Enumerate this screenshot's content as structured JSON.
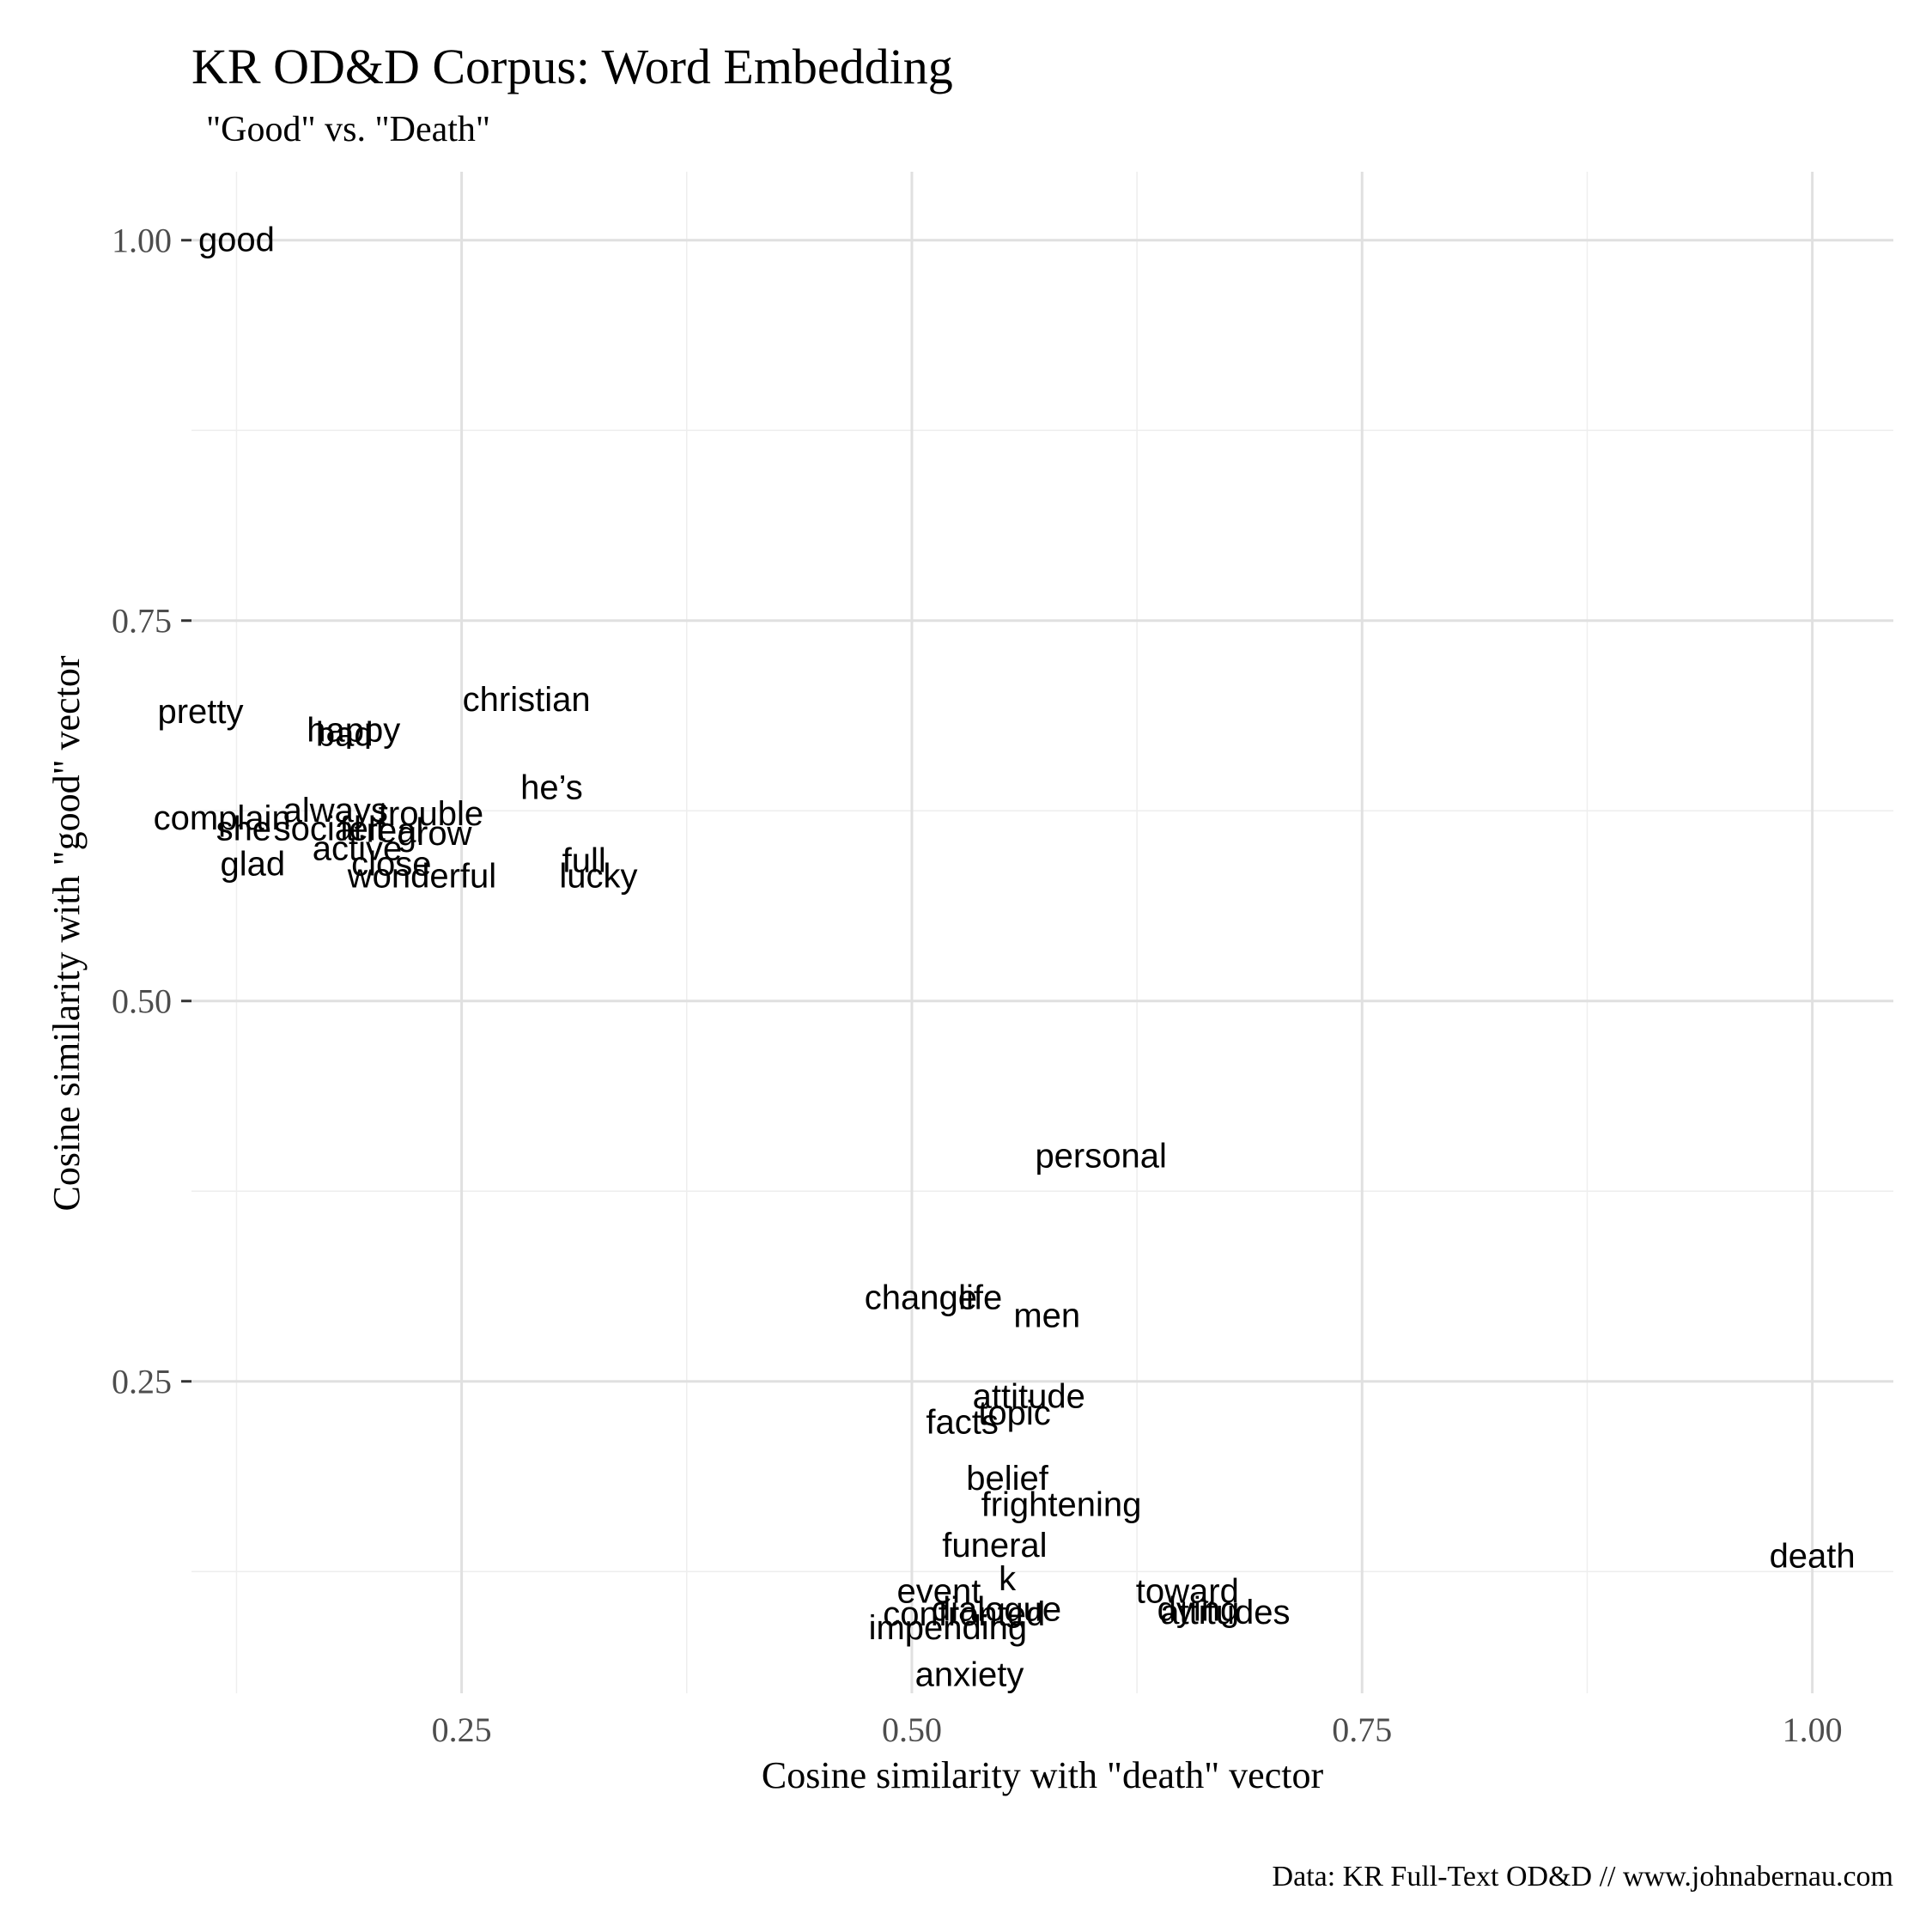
{
  "chart_data": {
    "type": "scatter",
    "title": "KR OD&D Corpus: Word Embedding",
    "subtitle": "\"Good\" vs. \"Death\"",
    "xlabel": "Cosine similarity with \"death\" vector",
    "ylabel": "Cosine similarity with \"good\" vector",
    "caption": "Data: KR Full-Text OD&D // www.johnabernau.com",
    "xlim": [
      0.1,
      1.045
    ],
    "ylim": [
      0.045,
      1.045
    ],
    "x_ticks": [
      0.25,
      0.5,
      0.75,
      1.0
    ],
    "x_tick_labels": [
      "0.25",
      "0.50",
      "0.75",
      "1.00"
    ],
    "y_ticks": [
      0.25,
      0.5,
      0.75,
      1.0
    ],
    "y_tick_labels": [
      "0.25",
      "0.50",
      "0.75",
      "1.00"
    ],
    "x_minor": [
      0.125,
      0.375,
      0.625,
      0.875
    ],
    "y_minor": [
      0.125,
      0.375,
      0.625,
      0.875
    ],
    "grid": true,
    "points": [
      {
        "label": "good",
        "x": 0.125,
        "y": 1.0
      },
      {
        "label": "pretty",
        "x": 0.105,
        "y": 0.69
      },
      {
        "label": "happy",
        "x": 0.19,
        "y": 0.678
      },
      {
        "label": "bad",
        "x": 0.185,
        "y": 0.675
      },
      {
        "label": "christian",
        "x": 0.286,
        "y": 0.698
      },
      {
        "label": "he’s",
        "x": 0.3,
        "y": 0.64
      },
      {
        "label": "complain",
        "x": 0.117,
        "y": 0.62
      },
      {
        "label": "always",
        "x": 0.18,
        "y": 0.625
      },
      {
        "label": "trouble",
        "x": 0.233,
        "y": 0.623
      },
      {
        "label": "she",
        "x": 0.129,
        "y": 0.613
      },
      {
        "label": "social",
        "x": 0.17,
        "y": 0.613
      },
      {
        "label": "felt",
        "x": 0.195,
        "y": 0.613
      },
      {
        "label": "real",
        "x": 0.213,
        "y": 0.612
      },
      {
        "label": "grow",
        "x": 0.235,
        "y": 0.61
      },
      {
        "label": "active",
        "x": 0.192,
        "y": 0.6
      },
      {
        "label": "glad",
        "x": 0.134,
        "y": 0.59
      },
      {
        "label": "close",
        "x": 0.211,
        "y": 0.59
      },
      {
        "label": "wonderful",
        "x": 0.228,
        "y": 0.582
      },
      {
        "label": "full",
        "x": 0.318,
        "y": 0.592
      },
      {
        "label": "lucky",
        "x": 0.326,
        "y": 0.582
      },
      {
        "label": "personal",
        "x": 0.605,
        "y": 0.398
      },
      {
        "label": "change",
        "x": 0.505,
        "y": 0.305
      },
      {
        "label": "life",
        "x": 0.538,
        "y": 0.305
      },
      {
        "label": "men",
        "x": 0.575,
        "y": 0.293
      },
      {
        "label": "attitude",
        "x": 0.565,
        "y": 0.24
      },
      {
        "label": "topic",
        "x": 0.557,
        "y": 0.229
      },
      {
        "label": "facts",
        "x": 0.528,
        "y": 0.223
      },
      {
        "label": "belief",
        "x": 0.553,
        "y": 0.186
      },
      {
        "label": "frightening",
        "x": 0.583,
        "y": 0.169
      },
      {
        "label": "funeral",
        "x": 0.546,
        "y": 0.142
      },
      {
        "label": "k",
        "x": 0.553,
        "y": 0.12
      },
      {
        "label": "event",
        "x": 0.515,
        "y": 0.112
      },
      {
        "label": "toward",
        "x": 0.653,
        "y": 0.112
      },
      {
        "label": "dying",
        "x": 0.659,
        "y": 0.1
      },
      {
        "label": "attitudes",
        "x": 0.674,
        "y": 0.098
      },
      {
        "label": "dialogue",
        "x": 0.547,
        "y": 0.1
      },
      {
        "label": "confronted",
        "x": 0.529,
        "y": 0.097
      },
      {
        "label": "impending",
        "x": 0.52,
        "y": 0.088
      },
      {
        "label": "anxiety",
        "x": 0.532,
        "y": 0.057
      },
      {
        "label": "death",
        "x": 1.0,
        "y": 0.135
      }
    ]
  }
}
